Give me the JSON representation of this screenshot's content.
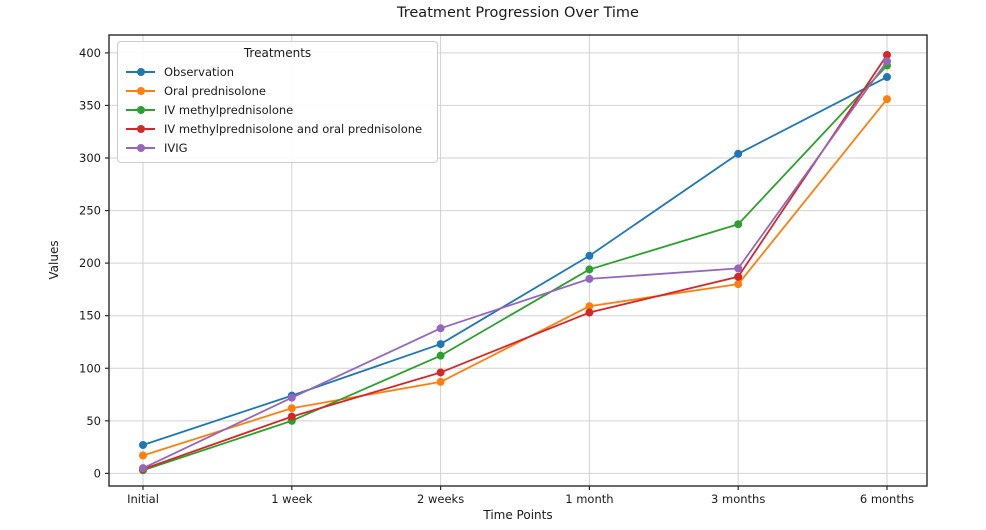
{
  "chart_data": {
    "type": "line",
    "title": "Treatment Progression Over Time",
    "xlabel": "Time Points",
    "ylabel": "Values",
    "legend_title": "Treatments",
    "legend_position": "upper left",
    "grid": true,
    "marker": "circle",
    "categories": [
      "Initial",
      "1 week",
      "2 weeks",
      "1 month",
      "3 months",
      "6 months"
    ],
    "yticks": [
      0,
      50,
      100,
      150,
      200,
      250,
      300,
      350,
      400
    ],
    "ylim": [
      -12,
      417
    ],
    "series": [
      {
        "name": "Observation",
        "color": "#1f77b4",
        "values": [
          27,
          74,
          123,
          207,
          304,
          377
        ]
      },
      {
        "name": "Oral prednisolone",
        "color": "#ff7f0e",
        "values": [
          17,
          62,
          87,
          159,
          180,
          356
        ]
      },
      {
        "name": "IV methylprednisolone",
        "color": "#2ca02c",
        "values": [
          3,
          50,
          112,
          194,
          237,
          388
        ]
      },
      {
        "name": "IV methylprednisolone and oral prednisolone",
        "color": "#d62728",
        "values": [
          4,
          54,
          96,
          153,
          187,
          398
        ]
      },
      {
        "name": "IVIG",
        "color": "#9467bd",
        "values": [
          5,
          72,
          138,
          185,
          195,
          392
        ]
      }
    ]
  },
  "style": {
    "background": "#ffffff",
    "grid_color": "#d2d2d2",
    "spine_color": "#2b2b2b",
    "tick_color": "#2b2b2b",
    "text_color": "#1a1a1a",
    "legend_border": "#cccccc"
  }
}
